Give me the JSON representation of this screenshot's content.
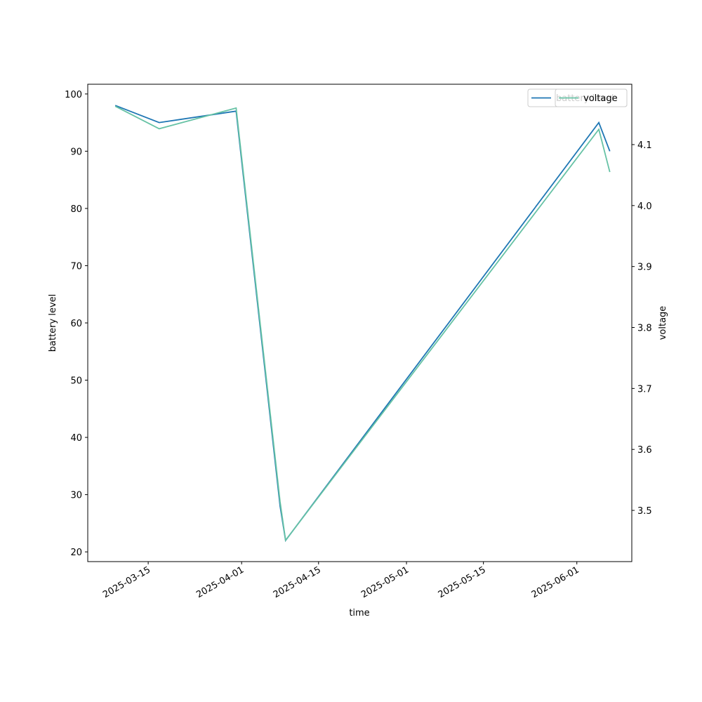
{
  "chart_data": {
    "type": "line",
    "x_label": "time",
    "y_label": "battery level",
    "y2_label": "voltage",
    "x": [
      "2025-03-09",
      "2025-03-17",
      "2025-03-31",
      "2025-04-08",
      "2025-04-09",
      "2025-06-05",
      "2025-06-07"
    ],
    "series": [
      {
        "name": "battery level",
        "color": "#1f77b4",
        "values": [
          98,
          95,
          97,
          28,
          22,
          95,
          90
        ]
      },
      {
        "name": "voltage",
        "color": "#66c2a5",
        "axis": "y2",
        "values": [
          4.163,
          4.126,
          4.16,
          3.514,
          3.451,
          4.125,
          4.055
        ]
      }
    ],
    "xlim": [
      "2025-03-04",
      "2025-06-11"
    ],
    "xticks": [
      "2025-03-15",
      "2025-04-01",
      "2025-04-15",
      "2025-05-01",
      "2025-05-15",
      "2025-06-01"
    ],
    "ylim": [
      18.3,
      101.7
    ],
    "yticks": [
      20,
      30,
      40,
      50,
      60,
      70,
      80,
      90,
      100
    ],
    "y2lim": [
      3.416,
      4.199
    ],
    "y2ticks": [
      3.5,
      3.6,
      3.7,
      3.8,
      3.9,
      {
        "value": 4,
        "label": "4.0"
      },
      4.1
    ],
    "legend": "upper right"
  }
}
